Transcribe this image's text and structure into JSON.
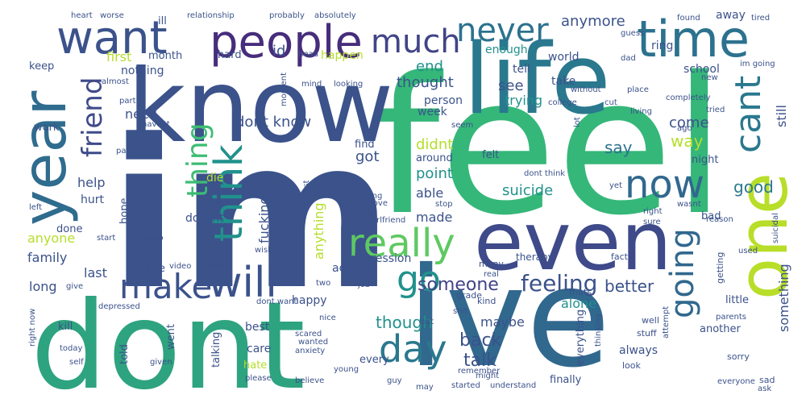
{
  "title": "",
  "background": "#ffffff",
  "palette": [
    "#440154",
    "#3b528b",
    "#21918c",
    "#5ec962",
    "#fde725"
  ],
  "words": [
    {
      "text": "im",
      "color": "#3b528b",
      "rotate": false
    },
    {
      "text": "feel",
      "color": "#35b779",
      "rotate": false
    },
    {
      "text": "dont",
      "color": "#2ea37f",
      "rotate": false
    },
    {
      "text": "ive",
      "color": "#31688e",
      "rotate": false
    },
    {
      "text": "know",
      "color": "#3b528b",
      "rotate": false
    },
    {
      "text": "life",
      "color": "#2a788e",
      "rotate": false
    },
    {
      "text": "even",
      "color": "#3e4a89",
      "rotate": false
    },
    {
      "text": "one",
      "color": "#b8de29",
      "rotate": true
    },
    {
      "text": "time",
      "color": "#2c728e",
      "rotate": false
    },
    {
      "text": "year",
      "color": "#2f6c8e",
      "rotate": true
    },
    {
      "text": "people",
      "color": "#472d7b",
      "rotate": false
    },
    {
      "text": "want",
      "color": "#3b528b",
      "rotate": false
    },
    {
      "text": "really",
      "color": "#5ec962",
      "rotate": false
    },
    {
      "text": "now",
      "color": "#31688e",
      "rotate": false
    },
    {
      "text": "make",
      "color": "#3b528b",
      "rotate": false
    },
    {
      "text": "will",
      "color": "#3b528b",
      "rotate": false
    },
    {
      "text": "think",
      "color": "#21918c",
      "rotate": true
    },
    {
      "text": "thing",
      "color": "#3dbc74",
      "rotate": true
    },
    {
      "text": "day",
      "color": "#2a788e",
      "rotate": false
    },
    {
      "text": "go",
      "color": "#21918c",
      "rotate": false
    },
    {
      "text": "much",
      "color": "#414487",
      "rotate": false
    },
    {
      "text": "never",
      "color": "#2c728e",
      "rotate": false
    },
    {
      "text": "cant",
      "color": "#2a788e",
      "rotate": true
    },
    {
      "text": "going",
      "color": "#31688e",
      "rotate": true
    },
    {
      "text": "friend",
      "color": "#3e4a89",
      "rotate": true
    },
    {
      "text": "feeling",
      "color": "#3b528b",
      "rotate": false
    },
    {
      "text": "someone",
      "color": "#414487",
      "rotate": false
    },
    {
      "text": "back",
      "color": "#3b528b",
      "rotate": false
    },
    {
      "text": "though",
      "color": "#21918c",
      "rotate": false
    },
    {
      "text": "talk",
      "color": "#3b528b",
      "rotate": false
    },
    {
      "text": "better",
      "color": "#3b528b",
      "rotate": false
    },
    {
      "text": "good",
      "color": "#2a788e",
      "rotate": false
    },
    {
      "text": "say",
      "color": "#2c728e",
      "rotate": false
    },
    {
      "text": "way",
      "color": "#b5de2b",
      "rotate": false
    },
    {
      "text": "come",
      "color": "#3b528b",
      "rotate": false
    },
    {
      "text": "dont know",
      "color": "#3b528b",
      "rotate": false
    },
    {
      "text": "suicide",
      "color": "#21918c",
      "rotate": false
    },
    {
      "text": "point",
      "color": "#21918c",
      "rotate": false
    },
    {
      "text": "got",
      "color": "#3b528b",
      "rotate": false
    },
    {
      "text": "didnt",
      "color": "#b5de2b",
      "rotate": false
    },
    {
      "text": "thought",
      "color": "#3b528b",
      "rotate": false
    },
    {
      "text": "see",
      "color": "#3b528b",
      "rotate": false
    },
    {
      "text": "need",
      "color": "#3b528b",
      "rotate": false
    },
    {
      "text": "help",
      "color": "#3b528b",
      "rotate": false
    },
    {
      "text": "first",
      "color": "#b5de2b",
      "rotate": false
    },
    {
      "text": "anymore",
      "color": "#3b528b",
      "rotate": false
    },
    {
      "text": "end",
      "color": "#21918c",
      "rotate": false
    },
    {
      "text": "id",
      "color": "#3b528b",
      "rotate": false
    },
    {
      "text": "fucking",
      "color": "#3b528b",
      "rotate": true
    },
    {
      "text": "anything",
      "color": "#b5de2b",
      "rotate": true
    },
    {
      "text": "family",
      "color": "#3b528b",
      "rotate": false
    },
    {
      "text": "anyone",
      "color": "#b5de2b",
      "rotate": false
    },
    {
      "text": "last",
      "color": "#3b528b",
      "rotate": false
    },
    {
      "text": "long",
      "color": "#3b528b",
      "rotate": false
    },
    {
      "text": "able",
      "color": "#3b528b",
      "rotate": false
    },
    {
      "text": "made",
      "color": "#3b528b",
      "rotate": false
    },
    {
      "text": "alone",
      "color": "#21918c",
      "rotate": false
    },
    {
      "text": "maybe",
      "color": "#3b528b",
      "rotate": false
    },
    {
      "text": "always",
      "color": "#3b528b",
      "rotate": false
    },
    {
      "text": "something",
      "color": "#3b528b",
      "rotate": true
    },
    {
      "text": "still",
      "color": "#3b528b",
      "rotate": true
    },
    {
      "text": "trying",
      "color": "#21918c",
      "rotate": false
    },
    {
      "text": "person",
      "color": "#3b528b",
      "rotate": false
    },
    {
      "text": "week",
      "color": "#3b528b",
      "rotate": false
    },
    {
      "text": "tell",
      "color": "#3b528b",
      "rotate": false
    },
    {
      "text": "take",
      "color": "#3b528b",
      "rotate": false
    },
    {
      "text": "world",
      "color": "#3b528b",
      "rotate": false
    },
    {
      "text": "school",
      "color": "#3b528b",
      "rotate": false
    },
    {
      "text": "ring",
      "color": "#3b528b",
      "rotate": false
    },
    {
      "text": "away",
      "color": "#3b528b",
      "rotate": false
    },
    {
      "text": "enough",
      "color": "#21918c",
      "rotate": false
    },
    {
      "text": "happen",
      "color": "#b5de2b",
      "rotate": false
    },
    {
      "text": "nothing",
      "color": "#3b528b",
      "rotate": false
    },
    {
      "text": "hard",
      "color": "#3b528b",
      "rotate": false
    },
    {
      "text": "month",
      "color": "#3b528b",
      "rotate": false
    },
    {
      "text": "ill",
      "color": "#3b528b",
      "rotate": false
    },
    {
      "text": "work",
      "color": "#3b528b",
      "rotate": false
    },
    {
      "text": "keep",
      "color": "#3b528b",
      "rotate": false
    },
    {
      "text": "hurt",
      "color": "#3b528b",
      "rotate": false
    },
    {
      "text": "hope",
      "color": "#3b528b",
      "rotate": true
    },
    {
      "text": "die",
      "color": "#b5de2b",
      "rotate": false
    },
    {
      "text": "doesnt",
      "color": "#3b528b",
      "rotate": false
    },
    {
      "text": "done",
      "color": "#3b528b",
      "rotate": false
    },
    {
      "text": "past",
      "color": "#3b528b",
      "rotate": false
    },
    {
      "text": "depression",
      "color": "#3b528b",
      "rotate": false
    },
    {
      "text": "actually",
      "color": "#3b528b",
      "rotate": false
    },
    {
      "text": "live",
      "color": "#3b528b",
      "rotate": false
    },
    {
      "text": "happy",
      "color": "#3b528b",
      "rotate": false
    },
    {
      "text": "best",
      "color": "#3b528b",
      "rotate": false
    },
    {
      "text": "care",
      "color": "#3b528b",
      "rotate": false
    },
    {
      "text": "hate",
      "color": "#b5de2b",
      "rotate": false
    },
    {
      "text": "kill",
      "color": "#3b528b",
      "rotate": false
    },
    {
      "text": "told",
      "color": "#3b528b",
      "rotate": true
    },
    {
      "text": "went",
      "color": "#3b528b",
      "rotate": true
    },
    {
      "text": "talking",
      "color": "#3b528b",
      "rotate": true
    },
    {
      "text": "every",
      "color": "#3b528b",
      "rotate": false
    },
    {
      "text": "everything",
      "color": "#3b528b",
      "rotate": true
    },
    {
      "text": "finally",
      "color": "#3b528b",
      "rotate": false
    },
    {
      "text": "another",
      "color": "#3b528b",
      "rotate": false
    },
    {
      "text": "little",
      "color": "#3b528b",
      "rotate": false
    },
    {
      "text": "felt",
      "color": "#3b528b",
      "rotate": false
    },
    {
      "text": "find",
      "color": "#3b528b",
      "rotate": false
    },
    {
      "text": "around",
      "color": "#3b528b",
      "rotate": false
    },
    {
      "text": "night",
      "color": "#3b528b",
      "rotate": false
    },
    {
      "text": "bad",
      "color": "#3b528b",
      "rotate": false
    },
    {
      "text": "dont think",
      "color": "#3b528b",
      "rotate": false
    },
    {
      "text": "getting",
      "color": "#3b528b",
      "rotate": true
    },
    {
      "text": "therapy",
      "color": "#3b528b",
      "rotate": false
    },
    {
      "text": "fact",
      "color": "#3b528b",
      "rotate": false
    },
    {
      "text": "many",
      "color": "#3b528b",
      "rotate": false
    },
    {
      "text": "kind",
      "color": "#3b528b",
      "rotate": false
    },
    {
      "text": "grade",
      "color": "#3b528b",
      "rotate": false
    },
    {
      "text": "real",
      "color": "#3b528b",
      "rotate": false
    },
    {
      "text": "thats",
      "color": "#3b528b",
      "rotate": false
    },
    {
      "text": "thinking",
      "color": "#3b528b",
      "rotate": true
    },
    {
      "text": "well",
      "color": "#3b528b",
      "rotate": false
    },
    {
      "text": "stuff",
      "color": "#3b528b",
      "rotate": false
    },
    {
      "text": "look",
      "color": "#3b528b",
      "rotate": false
    },
    {
      "text": "sorry",
      "color": "#3b528b",
      "rotate": false
    },
    {
      "text": "sad",
      "color": "#3b528b",
      "rotate": false
    },
    {
      "text": "everyone",
      "color": "#3b528b",
      "rotate": false
    },
    {
      "text": "ask",
      "color": "#3b528b",
      "rotate": false
    },
    {
      "text": "parents",
      "color": "#3b528b",
      "rotate": false
    },
    {
      "text": "attempt",
      "color": "#3b528b",
      "rotate": true
    },
    {
      "text": "reason",
      "color": "#3b528b",
      "rotate": false
    },
    {
      "text": "wasnt",
      "color": "#3b528b",
      "rotate": false
    },
    {
      "text": "right",
      "color": "#3b528b",
      "rotate": false
    },
    {
      "text": "sure",
      "color": "#3b528b",
      "rotate": false
    },
    {
      "text": "suicidal",
      "color": "#3b528b",
      "rotate": true
    },
    {
      "text": "used",
      "color": "#3b528b",
      "rotate": false
    },
    {
      "text": "yet",
      "color": "#3b528b",
      "rotate": false
    },
    {
      "text": "ago",
      "color": "#3b528b",
      "rotate": false
    },
    {
      "text": "tried",
      "color": "#3b528b",
      "rotate": false
    },
    {
      "text": "new",
      "color": "#3b528b",
      "rotate": false
    },
    {
      "text": "im going",
      "color": "#3b528b",
      "rotate": false
    },
    {
      "text": "tired",
      "color": "#3b528b",
      "rotate": false
    },
    {
      "text": "found",
      "color": "#3b528b",
      "rotate": false
    },
    {
      "text": "guess",
      "color": "#3b528b",
      "rotate": false
    },
    {
      "text": "dad",
      "color": "#3b528b",
      "rotate": false
    },
    {
      "text": "place",
      "color": "#3b528b",
      "rotate": false
    },
    {
      "text": "completely",
      "color": "#3b528b",
      "rotate": false
    },
    {
      "text": "living",
      "color": "#3b528b",
      "rotate": false
    },
    {
      "text": "cut",
      "color": "#3b528b",
      "rotate": false
    },
    {
      "text": "college",
      "color": "#3b528b",
      "rotate": false
    },
    {
      "text": "without",
      "color": "#3b528b",
      "rotate": false
    },
    {
      "text": "lot",
      "color": "#3b528b",
      "rotate": true
    },
    {
      "text": "seem",
      "color": "#3b528b",
      "rotate": false
    },
    {
      "text": "stop",
      "color": "#3b528b",
      "rotate": false
    },
    {
      "text": "love",
      "color": "#3b528b",
      "rotate": false
    },
    {
      "text": "girlfriend",
      "color": "#3b528b",
      "rotate": false
    },
    {
      "text": "ending",
      "color": "#3b528b",
      "rotate": false
    },
    {
      "text": "post",
      "color": "#3b528b",
      "rotate": false
    },
    {
      "text": "fuck",
      "color": "#3b528b",
      "rotate": false
    },
    {
      "text": "afraid",
      "color": "#3b528b",
      "rotate": false
    },
    {
      "text": "video",
      "color": "#3b528b",
      "rotate": false
    },
    {
      "text": "wish",
      "color": "#3b528b",
      "rotate": false
    },
    {
      "text": "two",
      "color": "#3b528b",
      "rotate": false
    },
    {
      "text": "job",
      "color": "#3b528b",
      "rotate": false
    },
    {
      "text": "dont want",
      "color": "#3b528b",
      "rotate": false
    },
    {
      "text": "nice",
      "color": "#3b528b",
      "rotate": false
    },
    {
      "text": "wanted",
      "color": "#3b528b",
      "rotate": false
    },
    {
      "text": "scared",
      "color": "#3b528b",
      "rotate": false
    },
    {
      "text": "anxiety",
      "color": "#3b528b",
      "rotate": false
    },
    {
      "text": "young",
      "color": "#3b528b",
      "rotate": false
    },
    {
      "text": "please",
      "color": "#3b528b",
      "rotate": false
    },
    {
      "text": "believe",
      "color": "#3b528b",
      "rotate": false
    },
    {
      "text": "guy",
      "color": "#3b528b",
      "rotate": false
    },
    {
      "text": "may",
      "color": "#3b528b",
      "rotate": false
    },
    {
      "text": "started",
      "color": "#3b528b",
      "rotate": false
    },
    {
      "text": "understand",
      "color": "#3b528b",
      "rotate": false
    },
    {
      "text": "might",
      "color": "#3b528b",
      "rotate": false
    },
    {
      "text": "remember",
      "color": "#3b528b",
      "rotate": false
    },
    {
      "text": "lost",
      "color": "#3b528b",
      "rotate": false
    },
    {
      "text": "shit",
      "color": "#3b528b",
      "rotate": false
    },
    {
      "text": "heart",
      "color": "#3b528b",
      "rotate": false
    },
    {
      "text": "worse",
      "color": "#3b528b",
      "rotate": false
    },
    {
      "text": "relationship",
      "color": "#3b528b",
      "rotate": false
    },
    {
      "text": "probably",
      "color": "#3b528b",
      "rotate": false
    },
    {
      "text": "absolutely",
      "color": "#3b528b",
      "rotate": false
    },
    {
      "text": "head",
      "color": "#3b528b",
      "rotate": false
    },
    {
      "text": "almost",
      "color": "#3b528b",
      "rotate": false
    },
    {
      "text": "moment",
      "color": "#3b528b",
      "rotate": true
    },
    {
      "text": "mind",
      "color": "#3b528b",
      "rotate": false
    },
    {
      "text": "looking",
      "color": "#3b528b",
      "rotate": false
    },
    {
      "text": "part",
      "color": "#3b528b",
      "rotate": false
    },
    {
      "text": "havent",
      "color": "#3b528b",
      "rotate": false
    },
    {
      "text": "pain",
      "color": "#3b528b",
      "rotate": false
    },
    {
      "text": "left",
      "color": "#3b528b",
      "rotate": false
    },
    {
      "text": "least",
      "color": "#3b528b",
      "rotate": false
    },
    {
      "text": "start",
      "color": "#3b528b",
      "rotate": false
    },
    {
      "text": "sleep",
      "color": "#3b528b",
      "rotate": false
    },
    {
      "text": "give",
      "color": "#3b528b",
      "rotate": false
    },
    {
      "text": "depressed",
      "color": "#3b528b",
      "rotate": false
    },
    {
      "text": "right now",
      "color": "#3b528b",
      "rotate": true
    },
    {
      "text": "today",
      "color": "#3b528b",
      "rotate": false
    },
    {
      "text": "self",
      "color": "#3b528b",
      "rotate": false
    },
    {
      "text": "given",
      "color": "#3b528b",
      "rotate": false
    }
  ]
}
